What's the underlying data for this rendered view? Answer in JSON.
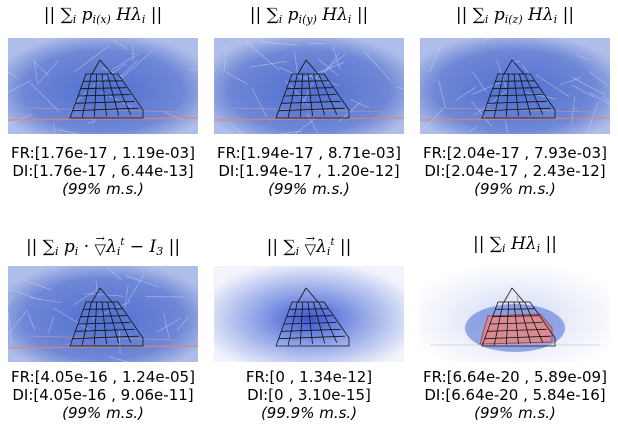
{
  "panels": [
    {
      "title": "|| ∑i p i(x) H λi ||",
      "fr": "FR:[1.76e-17 , 1.19e-03]",
      "di": "DI:[1.76e-17 , 6.44e-13]",
      "ms": "(99% m.s.)",
      "style": "noisy"
    },
    {
      "title": "|| ∑i p i(y) H λi ||",
      "fr": "FR:[1.94e-17 , 8.71e-03]",
      "di": "DI:[1.94e-17 , 1.20e-12]",
      "ms": "(99% m.s.)",
      "style": "noisy"
    },
    {
      "title": "|| ∑i p i(z) H λi ||",
      "fr": "FR:[2.04e-17 , 7.93e-03]",
      "di": "DI:[2.04e-17 , 2.43e-12]",
      "ms": "(99% m.s.)",
      "style": "noisy"
    },
    {
      "title": "|| ∑i pi · ∇λi t − I3 ||",
      "fr": "FR:[4.05e-16 , 1.24e-05]",
      "di": "DI:[4.05e-16 , 9.06e-11]",
      "ms": "(99% m.s.)",
      "style": "noisy"
    },
    {
      "title": "|| ∑i ∇λi t ||",
      "fr": "FR:[0 , 1.34e-12]",
      "di": "DI:[0 , 3.10e-15]",
      "ms": "(99.9% m.s.)",
      "style": "glow"
    },
    {
      "title": "|| ∑i H λi ||",
      "fr": "FR:[6.64e-20 , 5.89e-09]",
      "di": "DI:[6.64e-20 , 5.84e-16]",
      "ms": "(99% m.s.)",
      "style": "red"
    }
  ],
  "colors": {
    "field_blue": "#6f87d6",
    "field_light": "#dfe6f7",
    "wire": "#111111",
    "red_fill": "#d98a92"
  }
}
